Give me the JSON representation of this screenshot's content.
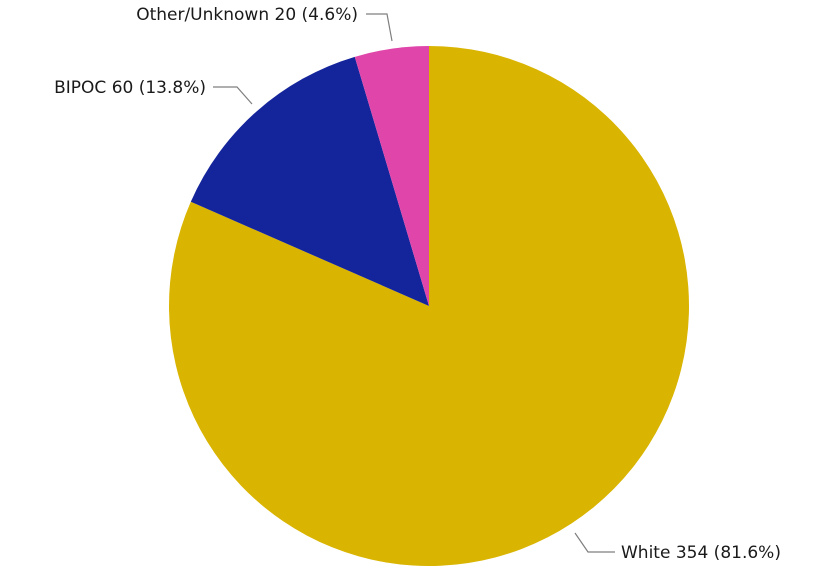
{
  "chart_data": {
    "type": "pie",
    "title": "",
    "start_angle_deg": 0,
    "direction": "clockwise",
    "slices": [
      {
        "name": "White",
        "value": 354,
        "percent": 81.6,
        "label": "White 354 (81.6%)",
        "color": "#D9B400"
      },
      {
        "name": "BIPOC",
        "value": 60,
        "percent": 13.8,
        "label": "BIPOC 60 (13.8%)",
        "color": "#14249A"
      },
      {
        "name": "Other/Unknown",
        "value": 20,
        "percent": 4.6,
        "label": "Other/Unknown 20 (4.6%)",
        "color": "#E046AA"
      }
    ],
    "legend": "none",
    "label_style": "outside-with-leader-lines"
  }
}
